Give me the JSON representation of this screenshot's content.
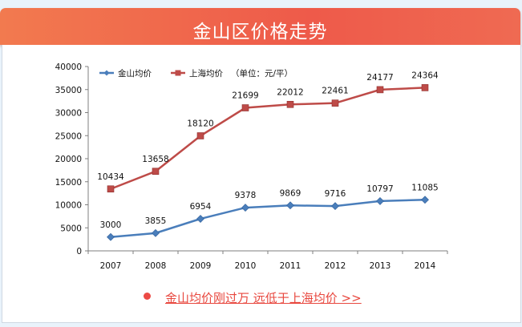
{
  "banner": {
    "title": "金山区价格走势"
  },
  "footer": {
    "link_text": "金山均价刚过万 远低于上海均价 >>"
  },
  "chart_data": {
    "type": "line",
    "categories": [
      "2007",
      "2008",
      "2009",
      "2010",
      "2011",
      "2012",
      "2013",
      "2014"
    ],
    "series": [
      {
        "name": "金山均价",
        "color": "#4a7ebb",
        "marker": "diamond",
        "values": [
          3000,
          3855,
          6954,
          9378,
          9869,
          9716,
          10797,
          11085
        ]
      },
      {
        "name": "上海均价",
        "color": "#be4b48",
        "marker": "square",
        "values": [
          13434,
          17258,
          24960,
          31038,
          31778,
          32060,
          34975,
          35410
        ],
        "data_labels": [
          "10434",
          "13658",
          "18120",
          "21699",
          "22012",
          "22461",
          "24177",
          "24364"
        ]
      }
    ],
    "legend_note": "（单位：元/平）",
    "yticks": [
      "0",
      "5000",
      "10000",
      "15000",
      "20000",
      "25000",
      "30000",
      "35000",
      "40000"
    ],
    "ylim": [
      0,
      40000
    ],
    "grid": false,
    "legend_position": "top"
  }
}
